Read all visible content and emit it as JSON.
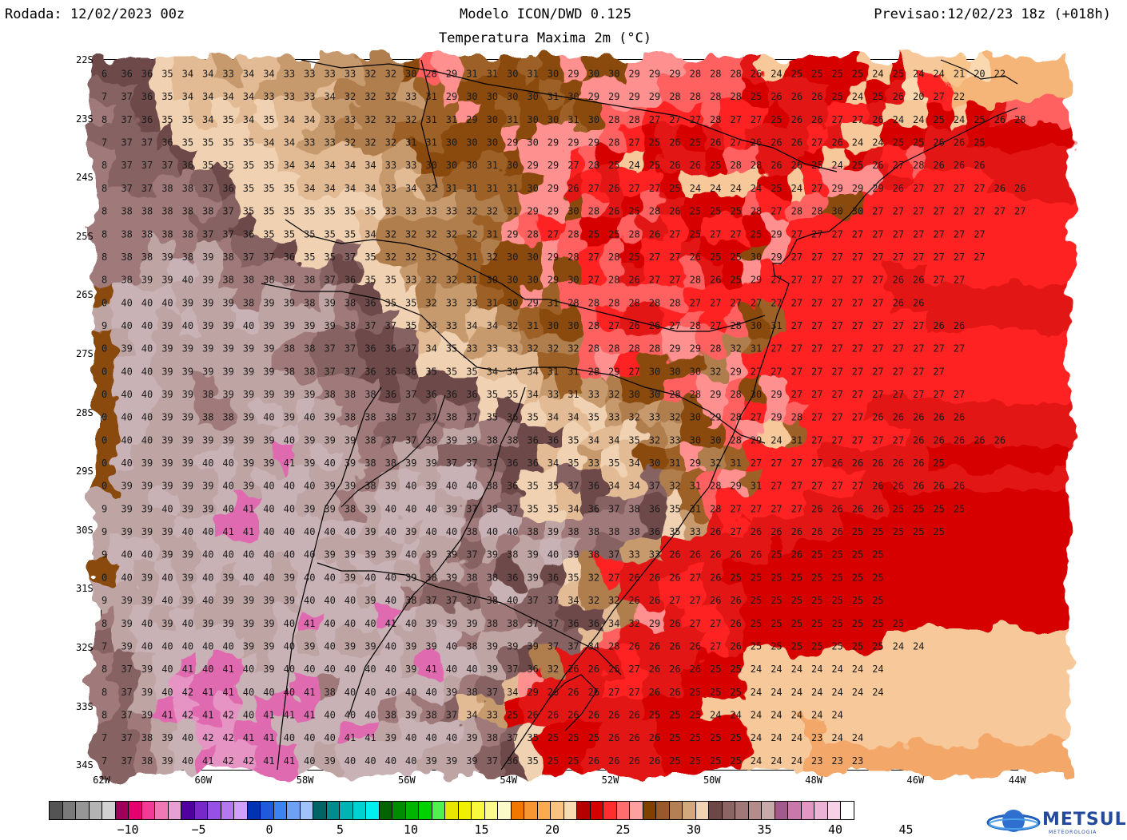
{
  "header": {
    "run": "Rodada: 12/02/2023 00z",
    "model": "Modelo ICON/DWD 0.125",
    "field": "Temperatura Maxima 2m (°C)",
    "valid": "Previsao:12/02/23 18z (+018h)"
  },
  "map": {
    "lat_labels": [
      "22S",
      "23S",
      "24S",
      "25S",
      "26S",
      "27S",
      "28S",
      "29S",
      "30S",
      "31S",
      "32S",
      "33S",
      "34S"
    ],
    "lon_labels": [
      "62W",
      "60W",
      "58W",
      "56W",
      "54W",
      "52W",
      "50W",
      "48W",
      "46W",
      "44W"
    ],
    "sample_rows": [
      "6 36 36 35 34 34 33 34 34 33 33 33 33 32 32 30 28 29 31 31 30 31 30 29 30 30 29 29 29 28 28 28 26 24 25 25 25 25 24 25 24 24 21 20 22",
      "7 37 36 35 34 34 34 34 33 33 33 34 32 32 32 33 31 29 30 30 30 30 31 30 29 29 29 29 28 28 28 28 25 26 26 26 25 24 25 26 20 27 22",
      "8 37 36 35 35 34 35 34 35 34 34 33 33 32 32 32 31 31 29 30 31 30 30 31 30 28 28 27 27 27 28 27 27 25 26 26 27 27 26 24 24 25 24 25 26 28",
      "7 37 37 36 35 35 35 35 34 34 33 33 32 32 32 31 31 30 30 30 29 30 29 29 29 28 27 25 26 25 26 27 26 26 26 27 26 24 24 25 25 26 26 25",
      "8 37 37 37 36 35 35 35 35 34 34 34 34 34 33 33 30 30 30 31 30 29 29 27 28 25 24 25 26 26 25 28 28 26 26 25 24 25 26 27 28 26 26 26",
      "8 37 37 38 38 37 36 35 35 35 34 34 34 34 33 34 32 31 31 31 31 30 29 26 27 26 27 27 25 24 24 24 24 25 24 27 29 29 29 26 27 27 27 27 26 26",
      "8 38 38 38 38 38 37 35 35 35 35 35 35 35 33 33 33 33 32 32 31 29 29 30 28 26 25 28 26 25 25 25 28 27 28 28 30 30 27 27 27 27 27 27 27 27",
      "8 38 38 38 38 37 37 36 35 35 35 35 35 34 32 32 32 32 32 31 29 28 27 28 25 25 28 26 27 25 27 27 25 29 27 27 27 27 27 27 27 27 27 27",
      "8 38 38 39 38 39 38 37 37 36 35 35 37 35 32 32 32 32 31 32 30 30 29 28 27 28 25 27 27 26 25 25 30 29 27 27 27 27 27 27 27 27 27 27",
      "8 38 39 39 40 39 38 38 38 38 38 37 36 35 35 33 32 32 31 30 30 30 29 30 27 28 26 27 27 28 26 25 29 27 27 27 27 27 27 26 26 27 27",
      "0 40 40 40 39 39 39 38 39 39 38 39 38 36 35 35 32 33 33 31 30 29 31 28 28 28 28 28 28 27 27 27 27 27 27 27 27 27 27 26 26",
      "9 40 40 39 40 39 39 40 39 39 39 39 38 37 37 35 33 33 34 34 32 31 30 30 28 27 26 26 27 28 27 28 30 31 27 27 27 27 27 27 27 26 26",
      "0 39 40 39 39 39 39 39 39 38 38 37 37 36 36 37 34 35 33 33 33 32 32 32 28 28 28 28 29 29 28 32 31 27 27 27 27 27 27 27 27 27 27",
      "0 40 40 39 39 39 39 39 39 38 38 37 37 36 36 36 35 35 35 34 34 34 31 31 28 29 27 30 30 30 32 29 27 27 27 27 27 27 27 27 27 27",
      "0 40 40 39 39 38 39 39 39 39 39 38 38 38 36 37 36 36 36 35 35 34 33 31 33 32 30 30 28 28 29 28 30 29 27 27 27 27 27 27 27 27 27",
      "0 40 40 39 39 38 38 39 40 39 40 39 38 38 38 37 37 38 37 35 36 35 34 34 35 33 32 33 32 30 29 28 27 29 28 27 27 27 26 26 26 26 26",
      "0 40 40 39 39 39 39 39 39 40 39 39 39 38 37 37 38 39 39 38 38 36 36 35 34 34 35 32 33 30 30 28 29 24 31 27 27 27 27 27 26 26 26 26 26",
      "0 40 39 39 39 40 40 39 39 41 39 40 39 38 38 39 39 37 37 37 36 36 34 35 33 35 34 30 31 29 32 31 27 27 27 27 26 26 26 26 26 25",
      "0 39 39 39 39 39 40 39 40 40 40 39 39 38 39 40 39 40 40 38 36 35 35 37 36 34 34 37 32 31 28 29 31 27 27 27 27 27 26 26 26 26 26",
      "9 39 39 40 39 39 40 41 40 40 39 39 38 39 40 40 40 39 37 38 37 35 35 34 36 37 38 36 35 31 28 27 27 27 27 26 26 26 26 25 25 25 25",
      "9 39 39 39 40 40 41 41 40 40 40 40 40 39 40 39 40 40 38 40 40 38 39 38 38 38 38 36 35 33 26 27 26 26 26 26 26 25 25 25 25 25",
      "9 40 40 39 39 40 40 40 40 40 40 39 39 39 39 40 39 39 37 39 38 39 40 39 38 37 33 33 26 26 26 26 26 25 26 25 25 25 25",
      "0 40 39 40 39 40 39 40 40 39 40 40 39 40 40 39 38 39 38 38 36 39 36 35 32 27 26 26 26 27 26 25 25 25 25 25 25 25 25",
      "9 39 39 40 39 40 39 39 39 39 40 40 40 39 40 38 37 37 37 38 40 37 37 34 32 32 26 26 27 27 26 26 25 25 25 25 25 25 25",
      "8 39 40 39 40 39 39 39 39 40 41 40 40 40 41 40 39 39 39 38 38 37 37 36 36 34 32 29 26 27 27 26 25 25 25 25 25 25 25 25",
      "7 39 40 40 40 40 40 39 39 40 39 40 39 39 40 39 39 40 38 39 39 39 37 37 34 28 26 26 26 26 27 26 25 25 25 25 25 25 25 24 24",
      "8 37 39 40 41 40 41 40 39 40 40 40 40 40 40 39 41 40 40 39 37 36 32 26 26 26 27 26 26 26 25 25 24 24 24 24 24 24 24",
      "8 37 39 40 42 41 41 40 40 40 41 38 40 40 40 40 40 39 38 37 34 29 26 26 26 27 27 26 26 25 25 25 24 24 24 24 24 24 24",
      "8 37 39 41 42 41 42 40 41 41 41 40 40 40 38 39 38 37 34 33 25 26 26 26 26 26 26 25 25 25 24 24 24 24 24 24 24",
      "7 37 38 39 40 42 42 41 41 40 40 40 41 41 39 40 40 40 39 38 37 35 25 25 25 26 26 26 25 25 25 25 24 24 24 23 24 24",
      "7 37 38 39 40 41 42 42 41 41 40 39 40 40 40 40 39 39 39 37 36 35 25 25 26 26 26 26 25 25 25 25 24 24 24 23 23 23"
    ]
  },
  "colorbar": {
    "colors": [
      "#545454",
      "#7a7a7a",
      "#969696",
      "#b4b4b4",
      "#d2d2d2",
      "#a0005a",
      "#e6006e",
      "#f03c96",
      "#f078b4",
      "#e6a0d2",
      "#5000a0",
      "#7828c8",
      "#9650e6",
      "#b478f0",
      "#d2a0fa",
      "#0032b4",
      "#1e5adc",
      "#3c82f0",
      "#6ea0f5",
      "#a0c3fa",
      "#006464",
      "#008c8c",
      "#00b4b4",
      "#00d2d2",
      "#00f0f0",
      "#006400",
      "#008c00",
      "#00b400",
      "#00d200",
      "#50f050",
      "#e6e600",
      "#f0f000",
      "#fafa3c",
      "#fafa8c",
      "#fafac8",
      "#f07800",
      "#f59632",
      "#faaa50",
      "#fac382",
      "#fadcb4",
      "#b40000",
      "#d70000",
      "#ff2d2d",
      "#ff6e6e",
      "#ffa0a0",
      "#804000",
      "#99592a",
      "#b38055",
      "#d2a87d",
      "#f0d2b4",
      "#6e4646",
      "#8c6464",
      "#a07878",
      "#b48c8c",
      "#c8aaaa",
      "#a05a8c",
      "#c878aa",
      "#e196c3",
      "#ebb4d7",
      "#f5d2e6",
      "#ffffff"
    ],
    "labels": [
      "−10",
      "−5",
      "0",
      "5",
      "10",
      "15",
      "20",
      "25",
      "30",
      "35",
      "40",
      "45"
    ]
  },
  "logo": {
    "name": "METSUL",
    "sub": "METEOROLOGIA"
  }
}
